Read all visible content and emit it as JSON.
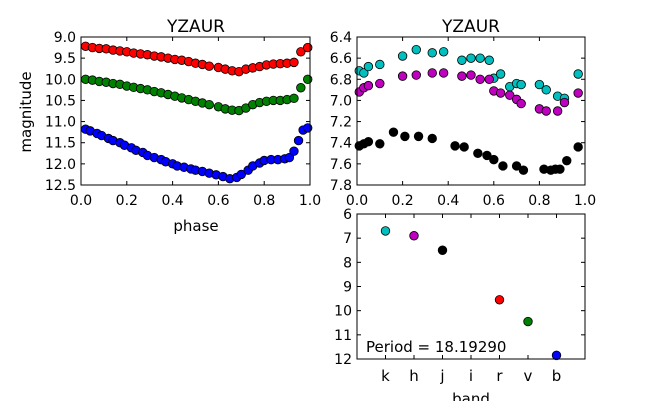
{
  "chart_data": [
    {
      "type": "scatter",
      "title": "YZAUR",
      "xlabel": "phase",
      "ylabel": "magnitude",
      "xlim": [
        0.0,
        1.0
      ],
      "ylim": [
        12.5,
        9.0
      ],
      "y_inverted": true,
      "x_ticks": [
        "0.0",
        "0.2",
        "0.4",
        "0.6",
        "0.8",
        "1.0"
      ],
      "y_ticks": [
        "9.0",
        "9.5",
        "10.0",
        "10.5",
        "11.0",
        "11.5",
        "12.0",
        "12.5"
      ],
      "grid": false,
      "series": [
        {
          "color": "#ff0000",
          "points": [
            [
              0.02,
              9.22
            ],
            [
              0.05,
              9.25
            ],
            [
              0.08,
              9.27
            ],
            [
              0.11,
              9.28
            ],
            [
              0.14,
              9.31
            ],
            [
              0.17,
              9.33
            ],
            [
              0.2,
              9.35
            ],
            [
              0.23,
              9.38
            ],
            [
              0.26,
              9.4
            ],
            [
              0.29,
              9.42
            ],
            [
              0.32,
              9.45
            ],
            [
              0.35,
              9.47
            ],
            [
              0.38,
              9.5
            ],
            [
              0.41,
              9.53
            ],
            [
              0.44,
              9.55
            ],
            [
              0.47,
              9.58
            ],
            [
              0.5,
              9.62
            ],
            [
              0.53,
              9.65
            ],
            [
              0.56,
              9.69
            ],
            [
              0.6,
              9.72
            ],
            [
              0.63,
              9.76
            ],
            [
              0.66,
              9.8
            ],
            [
              0.69,
              9.82
            ],
            [
              0.72,
              9.76
            ],
            [
              0.75,
              9.73
            ],
            [
              0.78,
              9.7
            ],
            [
              0.81,
              9.66
            ],
            [
              0.84,
              9.64
            ],
            [
              0.87,
              9.63
            ],
            [
              0.9,
              9.62
            ],
            [
              0.93,
              9.6
            ],
            [
              0.96,
              9.35
            ],
            [
              0.99,
              9.25
            ]
          ]
        },
        {
          "color": "#008000",
          "points": [
            [
              0.02,
              10.0
            ],
            [
              0.05,
              10.02
            ],
            [
              0.08,
              10.05
            ],
            [
              0.11,
              10.07
            ],
            [
              0.14,
              10.1
            ],
            [
              0.17,
              10.12
            ],
            [
              0.2,
              10.16
            ],
            [
              0.23,
              10.19
            ],
            [
              0.26,
              10.22
            ],
            [
              0.29,
              10.25
            ],
            [
              0.32,
              10.29
            ],
            [
              0.35,
              10.32
            ],
            [
              0.38,
              10.36
            ],
            [
              0.41,
              10.4
            ],
            [
              0.44,
              10.44
            ],
            [
              0.47,
              10.48
            ],
            [
              0.5,
              10.52
            ],
            [
              0.53,
              10.56
            ],
            [
              0.56,
              10.6
            ],
            [
              0.6,
              10.65
            ],
            [
              0.63,
              10.7
            ],
            [
              0.66,
              10.73
            ],
            [
              0.69,
              10.74
            ],
            [
              0.72,
              10.68
            ],
            [
              0.75,
              10.6
            ],
            [
              0.78,
              10.55
            ],
            [
              0.81,
              10.52
            ],
            [
              0.84,
              10.5
            ],
            [
              0.87,
              10.5
            ],
            [
              0.9,
              10.48
            ],
            [
              0.93,
              10.45
            ],
            [
              0.96,
              10.2
            ],
            [
              0.99,
              10.0
            ]
          ]
        },
        {
          "color": "#0000ff",
          "points": [
            [
              0.02,
              11.18
            ],
            [
              0.04,
              11.22
            ],
            [
              0.07,
              11.28
            ],
            [
              0.09,
              11.33
            ],
            [
              0.12,
              11.4
            ],
            [
              0.14,
              11.45
            ],
            [
              0.17,
              11.5
            ],
            [
              0.19,
              11.56
            ],
            [
              0.22,
              11.62
            ],
            [
              0.24,
              11.68
            ],
            [
              0.27,
              11.73
            ],
            [
              0.29,
              11.8
            ],
            [
              0.32,
              11.85
            ],
            [
              0.35,
              11.9
            ],
            [
              0.37,
              11.95
            ],
            [
              0.4,
              12.0
            ],
            [
              0.42,
              12.05
            ],
            [
              0.45,
              12.08
            ],
            [
              0.48,
              12.12
            ],
            [
              0.5,
              12.15
            ],
            [
              0.53,
              12.18
            ],
            [
              0.56,
              12.22
            ],
            [
              0.59,
              12.26
            ],
            [
              0.62,
              12.3
            ],
            [
              0.65,
              12.35
            ],
            [
              0.68,
              12.32
            ],
            [
              0.7,
              12.25
            ],
            [
              0.73,
              12.15
            ],
            [
              0.75,
              12.05
            ],
            [
              0.78,
              11.98
            ],
            [
              0.8,
              11.92
            ],
            [
              0.83,
              11.9
            ],
            [
              0.86,
              11.9
            ],
            [
              0.89,
              11.88
            ],
            [
              0.91,
              11.85
            ],
            [
              0.93,
              11.7
            ],
            [
              0.95,
              11.45
            ],
            [
              0.97,
              11.2
            ],
            [
              0.99,
              11.15
            ]
          ]
        }
      ]
    },
    {
      "type": "scatter",
      "title": "YZAUR",
      "xlabel": "",
      "ylabel": "",
      "xlim": [
        0.0,
        1.0
      ],
      "ylim": [
        7.8,
        6.4
      ],
      "y_inverted": true,
      "x_ticks": [
        "0.0",
        "0.2",
        "0.4",
        "0.6",
        "0.8",
        "1.0"
      ],
      "y_ticks": [
        "6.4",
        "6.6",
        "6.8",
        "7.0",
        "7.2",
        "7.4",
        "7.6",
        "7.8"
      ],
      "grid": false,
      "series": [
        {
          "color": "#00bfbf",
          "points": [
            [
              0.01,
              6.72
            ],
            [
              0.03,
              6.74
            ],
            [
              0.05,
              6.68
            ],
            [
              0.1,
              6.66
            ],
            [
              0.2,
              6.58
            ],
            [
              0.26,
              6.52
            ],
            [
              0.33,
              6.55
            ],
            [
              0.38,
              6.54
            ],
            [
              0.46,
              6.62
            ],
            [
              0.5,
              6.6
            ],
            [
              0.54,
              6.6
            ],
            [
              0.58,
              6.62
            ],
            [
              0.6,
              6.79
            ],
            [
              0.63,
              6.75
            ],
            [
              0.67,
              6.87
            ],
            [
              0.7,
              6.84
            ],
            [
              0.72,
              6.85
            ],
            [
              0.8,
              6.85
            ],
            [
              0.83,
              6.9
            ],
            [
              0.88,
              6.96
            ],
            [
              0.91,
              6.98
            ],
            [
              0.97,
              6.75
            ]
          ]
        },
        {
          "color": "#bf00bf",
          "points": [
            [
              0.01,
              6.92
            ],
            [
              0.03,
              6.88
            ],
            [
              0.05,
              6.86
            ],
            [
              0.1,
              6.84
            ],
            [
              0.2,
              6.77
            ],
            [
              0.26,
              6.76
            ],
            [
              0.33,
              6.74
            ],
            [
              0.38,
              6.74
            ],
            [
              0.46,
              6.77
            ],
            [
              0.5,
              6.76
            ],
            [
              0.54,
              6.8
            ],
            [
              0.58,
              6.8
            ],
            [
              0.6,
              6.91
            ],
            [
              0.63,
              6.93
            ],
            [
              0.67,
              6.95
            ],
            [
              0.7,
              6.99
            ],
            [
              0.72,
              7.03
            ],
            [
              0.8,
              7.08
            ],
            [
              0.83,
              7.1
            ],
            [
              0.88,
              7.1
            ],
            [
              0.91,
              7.02
            ],
            [
              0.97,
              6.93
            ]
          ]
        },
        {
          "color": "#000000",
          "points": [
            [
              0.01,
              7.43
            ],
            [
              0.03,
              7.41
            ],
            [
              0.05,
              7.39
            ],
            [
              0.1,
              7.41
            ],
            [
              0.16,
              7.3
            ],
            [
              0.21,
              7.34
            ],
            [
              0.27,
              7.34
            ],
            [
              0.33,
              7.36
            ],
            [
              0.43,
              7.43
            ],
            [
              0.47,
              7.44
            ],
            [
              0.53,
              7.5
            ],
            [
              0.57,
              7.52
            ],
            [
              0.6,
              7.56
            ],
            [
              0.64,
              7.62
            ],
            [
              0.7,
              7.62
            ],
            [
              0.73,
              7.66
            ],
            [
              0.82,
              7.65
            ],
            [
              0.85,
              7.66
            ],
            [
              0.87,
              7.65
            ],
            [
              0.89,
              7.65
            ],
            [
              0.92,
              7.57
            ],
            [
              0.97,
              7.44
            ]
          ]
        }
      ]
    },
    {
      "type": "scatter",
      "title": "",
      "xlabel": "band",
      "ylabel": "",
      "categories": [
        "k",
        "h",
        "j",
        "i",
        "r",
        "v",
        "b"
      ],
      "ylim": [
        12,
        6
      ],
      "y_inverted": true,
      "y_ticks": [
        "6",
        "7",
        "8",
        "9",
        "10",
        "11",
        "12"
      ],
      "annotation": "Period = 18.19290",
      "grid": false,
      "points": [
        {
          "band": "k",
          "value": 6.7,
          "color": "#00bfbf"
        },
        {
          "band": "h",
          "value": 6.9,
          "color": "#bf00bf"
        },
        {
          "band": "j",
          "value": 7.5,
          "color": "#000000"
        },
        {
          "band": "r",
          "value": 9.55,
          "color": "#ff0000"
        },
        {
          "band": "v",
          "value": 10.45,
          "color": "#008000"
        },
        {
          "band": "b",
          "value": 11.85,
          "color": "#0000ff"
        }
      ]
    }
  ]
}
